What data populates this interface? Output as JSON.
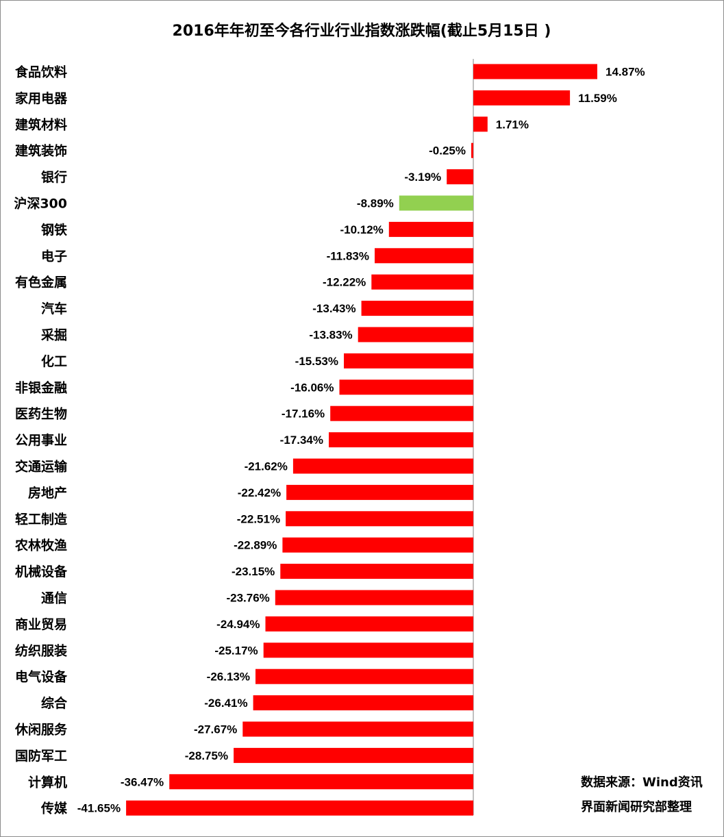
{
  "chart_data": {
    "type": "bar",
    "orientation": "horizontal",
    "title": "2016年年初至今各行业行业指数涨跌幅(截止5月15日 )",
    "categories": [
      "食品饮料",
      "家用电器",
      "建筑材料",
      "建筑装饰",
      "银行",
      "沪深300",
      "钢铁",
      "电子",
      "有色金属",
      "汽车",
      "采掘",
      "化工",
      "非银金融",
      "医药生物",
      "公用事业",
      "交通运输",
      "房地产",
      "轻工制造",
      "农林牧渔",
      "机械设备",
      "通信",
      "商业贸易",
      "纺织服装",
      "电气设备",
      "综合",
      "休闲服务",
      "国防军工",
      "计算机",
      "传媒"
    ],
    "values": [
      14.87,
      11.59,
      1.71,
      -0.25,
      -3.19,
      -8.89,
      -10.12,
      -11.83,
      -12.22,
      -13.43,
      -13.83,
      -15.53,
      -16.06,
      -17.16,
      -17.34,
      -21.62,
      -22.42,
      -22.51,
      -22.89,
      -23.15,
      -23.76,
      -24.94,
      -25.17,
      -26.13,
      -26.41,
      -27.67,
      -28.75,
      -36.47,
      -41.65
    ],
    "value_labels": [
      "14.87%",
      "11.59%",
      "1.71%",
      "-0.25%",
      "-3.19%",
      "-8.89%",
      "-10.12%",
      "-11.83%",
      "-12.22%",
      "-13.43%",
      "-13.83%",
      "-15.53%",
      "-16.06%",
      "-17.16%",
      "-17.34%",
      "-21.62%",
      "-22.42%",
      "-22.51%",
      "-22.89%",
      "-23.15%",
      "-23.76%",
      "-24.94%",
      "-25.17%",
      "-26.13%",
      "-26.41%",
      "-27.67%",
      "-28.75%",
      "-36.47%",
      "-41.65%"
    ],
    "highlight_category": "沪深300",
    "colors": {
      "bar": "#ff0000",
      "highlight": "#92d050"
    },
    "xlim": [
      -41.65,
      14.87
    ],
    "grid": false,
    "legend": "none"
  },
  "footer": {
    "source": "数据来源：Wind资讯",
    "credit": "界面新闻研究部整理"
  }
}
